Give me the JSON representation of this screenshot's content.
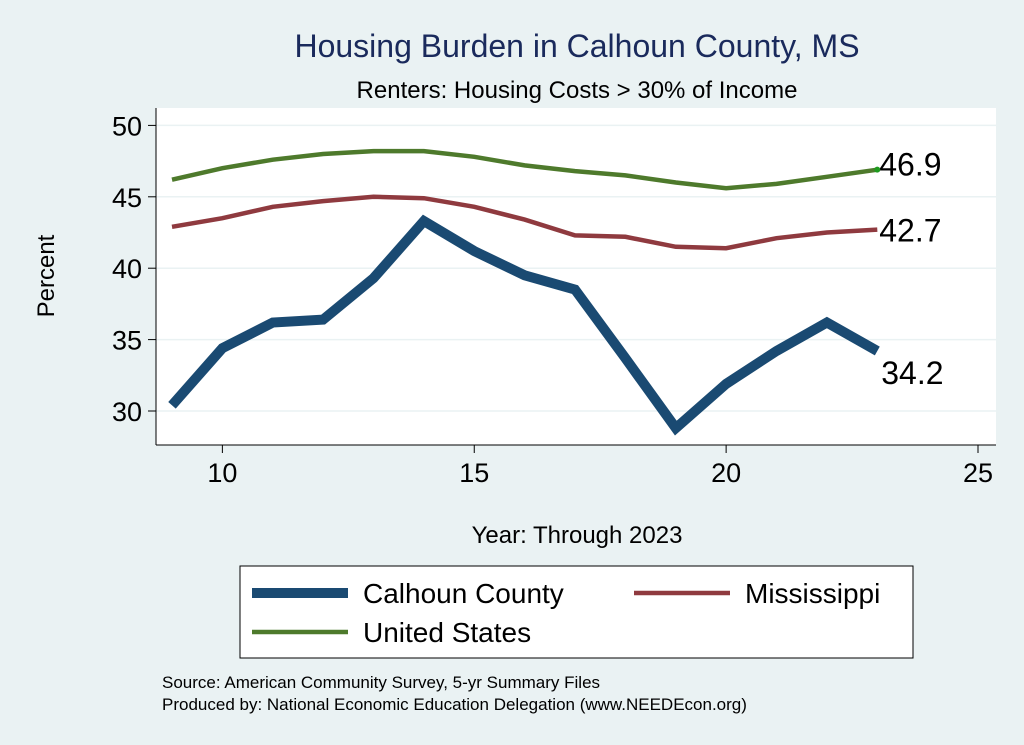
{
  "chart_data": {
    "type": "line",
    "title": "Housing Burden in Calhoun County, MS",
    "subtitle": "Renters: Housing Costs > 30% of Income",
    "xlabel": "Year: Through 2023",
    "ylabel": "Percent",
    "xlim": [
      9,
      25
    ],
    "ylim": [
      28,
      51
    ],
    "xticks": [
      10,
      15,
      20,
      25
    ],
    "yticks": [
      30,
      35,
      40,
      45,
      50
    ],
    "grid": true,
    "legend_position": "bottom",
    "x": [
      9,
      10,
      11,
      12,
      13,
      14,
      15,
      16,
      17,
      18,
      19,
      20,
      21,
      22,
      23
    ],
    "series": [
      {
        "name": "Calhoun County",
        "color": "#1a4a72",
        "values": [
          30.4,
          34.4,
          36.2,
          36.4,
          39.3,
          43.3,
          41.2,
          39.5,
          38.5,
          33.7,
          28.8,
          31.9,
          34.2,
          36.2,
          34.2
        ],
        "end_label": "34.2"
      },
      {
        "name": "Mississippi",
        "color": "#8f3a3f",
        "values": [
          42.9,
          43.5,
          44.3,
          44.7,
          45.0,
          44.9,
          44.3,
          43.4,
          42.3,
          42.2,
          41.5,
          41.4,
          42.1,
          42.5,
          42.7
        ],
        "end_label": "42.7"
      },
      {
        "name": "United States",
        "color": "#4e7a2c",
        "values": [
          46.2,
          47.0,
          47.6,
          48.0,
          48.2,
          48.2,
          47.8,
          47.2,
          46.8,
          46.5,
          46.0,
          45.6,
          45.9,
          46.4,
          46.9
        ],
        "end_label": "46.9"
      }
    ]
  },
  "notes": {
    "source": "Source: American Community Survey, 5-yr Summary Files",
    "produced_by": "Produced by: National Economic Education Delegation (www.NEEDEcon.org)"
  }
}
